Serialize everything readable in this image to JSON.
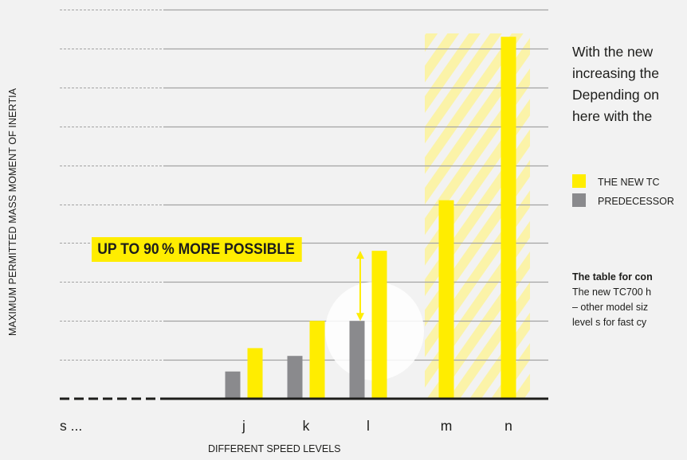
{
  "colors": {
    "new_tc": "#ffed00",
    "predecessor": "#8a8a8d",
    "background": "#f2f2f2",
    "grid": "#a3a3a3",
    "highlight": "#ffffff",
    "hatch": "#fbf3a8"
  },
  "callout": "UP TO 90 % MORE POSSIBLE",
  "text_panel": {
    "intro_lines": [
      "With the new",
      "increasing the",
      "Depending on",
      "here with the"
    ],
    "note_title": "The table for con",
    "note_lines": [
      "The new TC700 h",
      "– other model siz",
      "level s for fast cy"
    ]
  },
  "chart_data": {
    "type": "bar",
    "ylabel": "MAXIMUM PERMITTED MASS MOMENT OF INERTIA",
    "xlabel": "DIFFERENT SPEED LEVELS",
    "categories": [
      "s ...",
      "j",
      "k",
      "l",
      "m",
      "n"
    ],
    "ylim": [
      0,
      10
    ],
    "gridlines": [
      1,
      2,
      3,
      4,
      5,
      6,
      7,
      8,
      9,
      10
    ],
    "grid": true,
    "hatched_categories": [
      "m",
      "n"
    ],
    "highlighted_category": "l",
    "arrow_category": "l",
    "series": [
      {
        "name": "THE NEW TC",
        "color_key": "new_tc",
        "values": [
          null,
          1.3,
          2.0,
          3.8,
          5.1,
          9.3
        ]
      },
      {
        "name": "PREDECESSOR",
        "color_key": "predecessor",
        "values": [
          null,
          0.7,
          1.1,
          2.0,
          null,
          null
        ]
      }
    ],
    "legend": [
      {
        "label": "THE NEW TC",
        "color_key": "new_tc"
      },
      {
        "label": "PREDECESSOR",
        "color_key": "predecessor"
      }
    ],
    "legend_position": "right"
  }
}
